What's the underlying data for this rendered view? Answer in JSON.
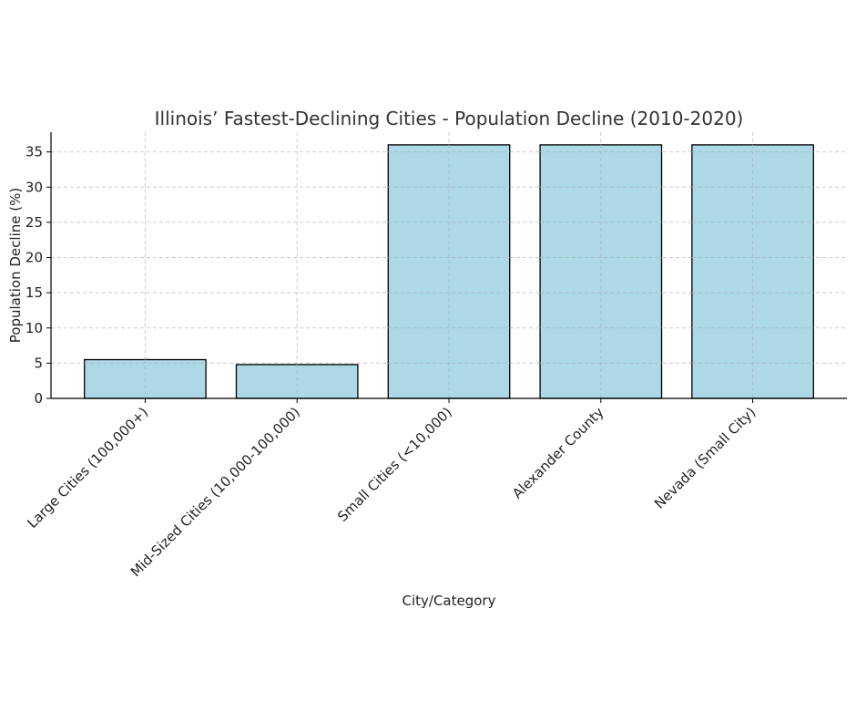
{
  "chart_data": {
    "type": "bar",
    "title": "Illinois’ Fastest-Declining Cities - Population Decline (2010-2020)",
    "xlabel": "City/Category",
    "ylabel": "Population Decline (%)",
    "categories": [
      "Large Cities (100,000+)",
      "Mid-Sized Cities (10,000-100,000)",
      "Small Cities (<10,000)",
      "Alexander County",
      "Nevada (Small City)"
    ],
    "values": [
      5.5,
      4.8,
      36,
      36,
      36
    ],
    "ylim": [
      0,
      37.8
    ],
    "yticks": [
      "0",
      "5",
      "10",
      "15",
      "20",
      "25",
      "30",
      "35"
    ],
    "grid": true,
    "bar_color": "#add8e6",
    "edge_color": "#000000",
    "grid_color": "#cccccc",
    "text_color": "#333333"
  }
}
